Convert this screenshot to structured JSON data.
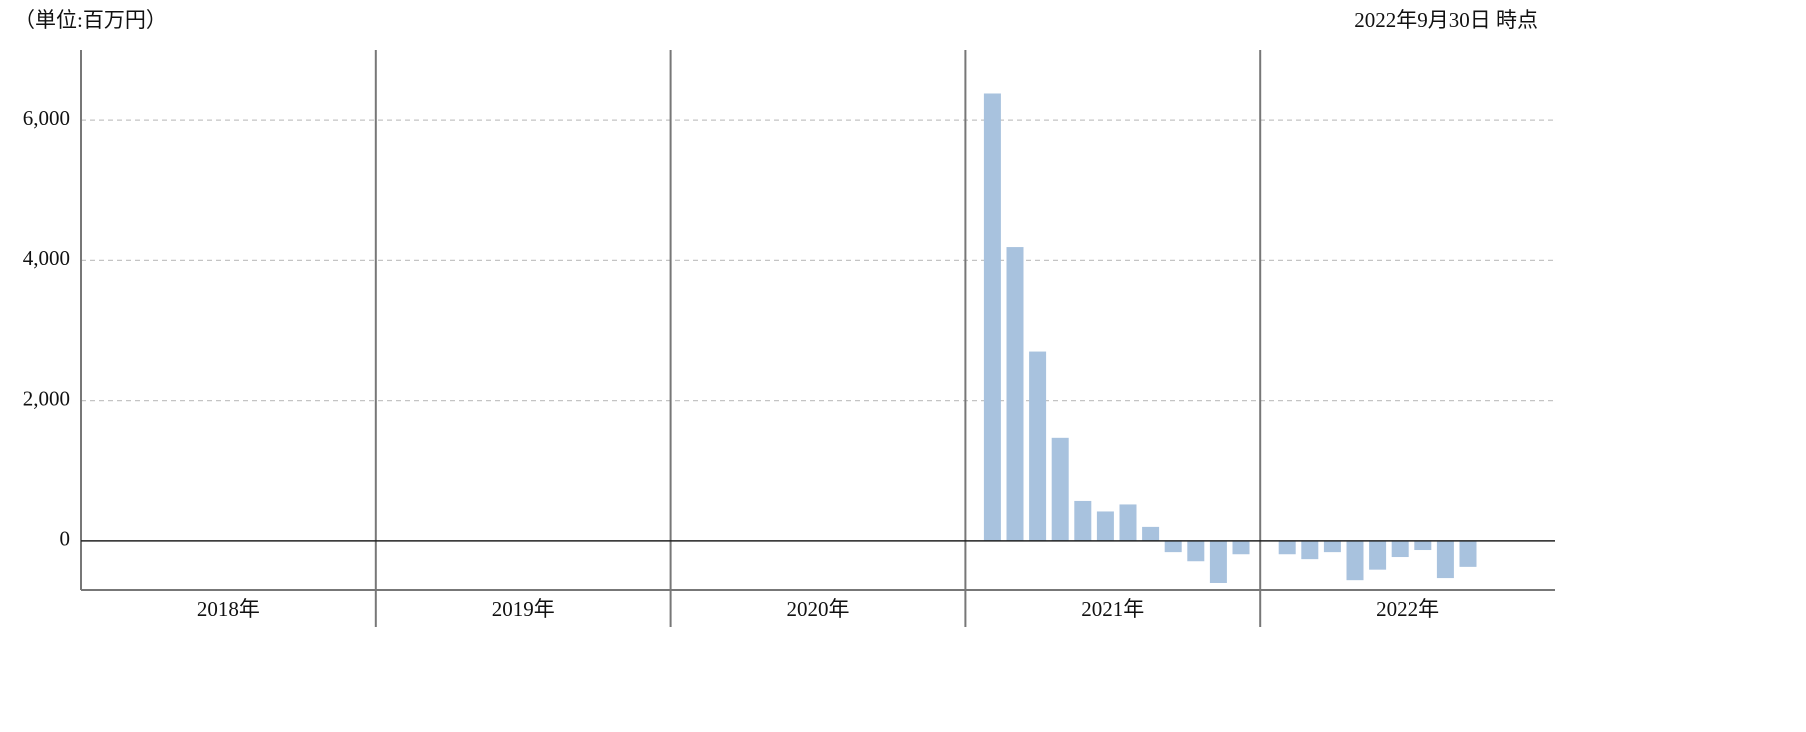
{
  "chart_data": {
    "type": "bar",
    "unit_label": "（単位:百万円）",
    "as_of": "2022年9月30日 時点",
    "categories": [
      "2018年",
      "2019年",
      "2020年",
      "2021年",
      "2022年"
    ],
    "values": [
      [
        null,
        null,
        null,
        null,
        null,
        null,
        null,
        null,
        null,
        null,
        null,
        null
      ],
      [
        null,
        null,
        null,
        null,
        null,
        null,
        null,
        null,
        null,
        null,
        null,
        null
      ],
      [
        null,
        null,
        null,
        null,
        null,
        null,
        null,
        null,
        null,
        null,
        null,
        null
      ],
      [
        6380,
        4190,
        2700,
        1470,
        570,
        420,
        520,
        200,
        -160,
        -290,
        -600,
        -190
      ],
      [
        -190,
        -260,
        -160,
        -560,
        -410,
        -230,
        -130,
        -530,
        -370,
        null,
        null,
        null
      ]
    ],
    "color": "#a8c2de",
    "ylim": [
      -700,
      7000
    ],
    "yticks": [
      0,
      {
        "value": 2000,
        "label": "2,000"
      },
      {
        "value": 4000,
        "label": "4,000"
      },
      {
        "value": 6000,
        "label": "6,000"
      }
    ],
    "grid": true
  }
}
